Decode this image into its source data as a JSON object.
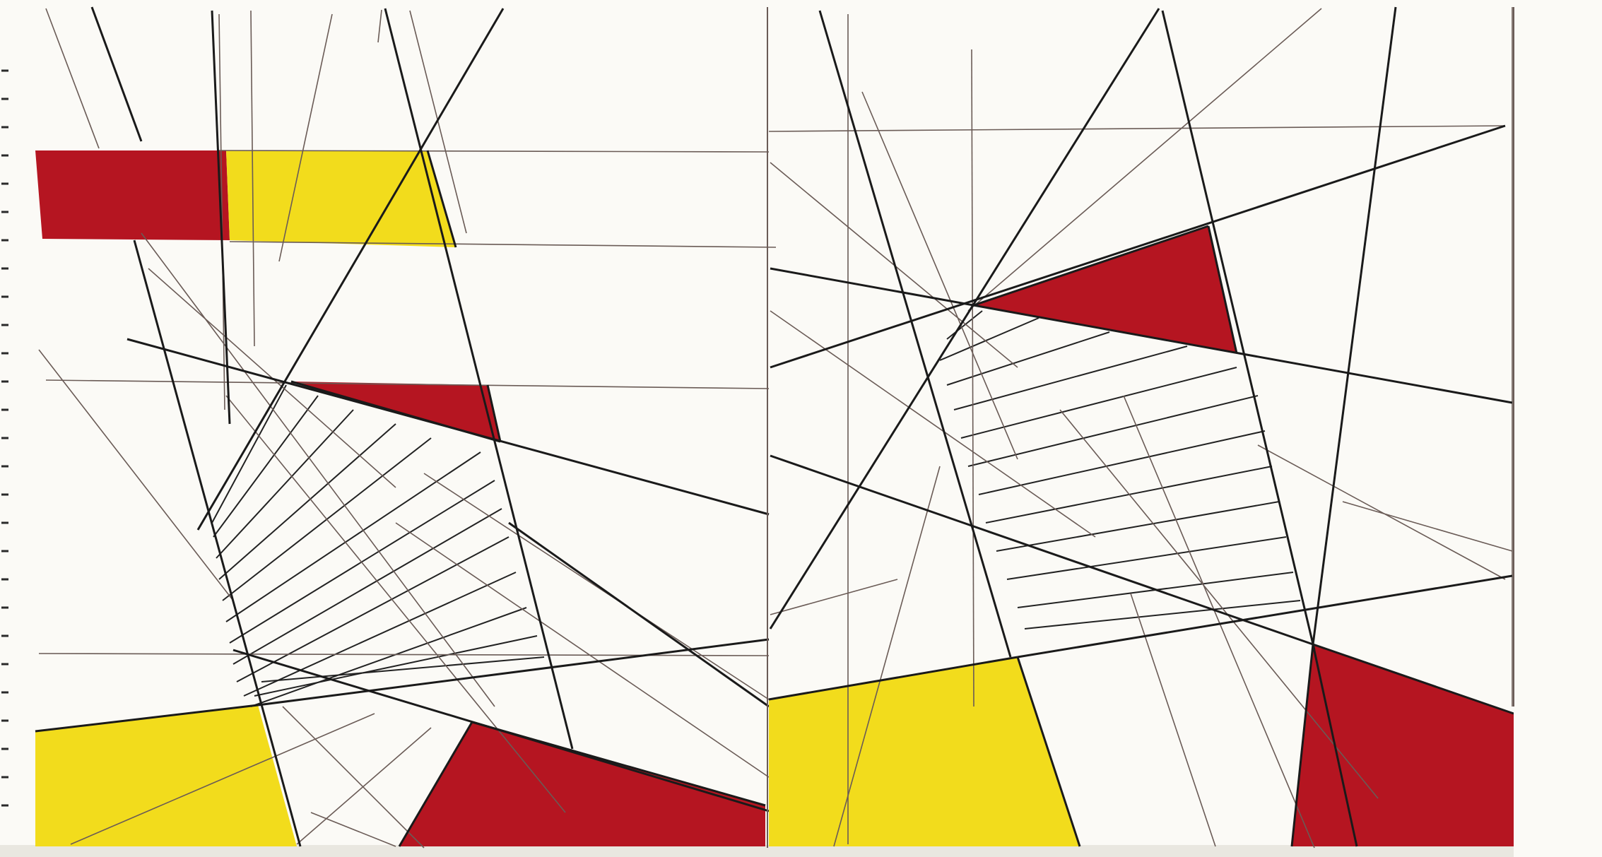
{
  "artwork": {
    "description_colors": {
      "paper": "#fbfaf6",
      "red": "#b51521",
      "red_light": "#c81e2c",
      "yellow": "#f2dc1c",
      "yellow_light": "#f6e75a",
      "ink": "#1a1a1a",
      "pencil": "#6a5b56"
    },
    "panels": 2
  }
}
